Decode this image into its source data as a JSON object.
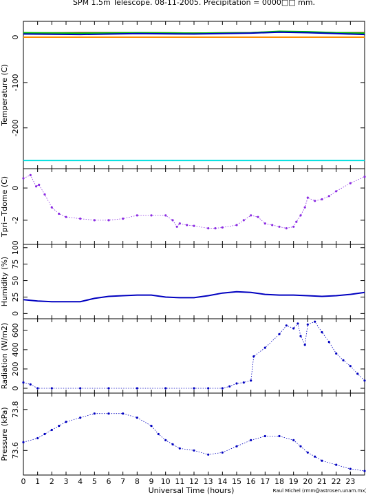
{
  "title": "SPM 1.5m Telescope. 08-11-2005. Precipitation = 0000□□ mm.",
  "xlabel": "Universal Time (hours)",
  "credit": "Raul Michel (rmm@astrosen.unam.mx)",
  "colors": {
    "red": "#c00000",
    "green": "#00c000",
    "orange": "#ff8c00",
    "cyan": "#00e0e0",
    "blue": "#0000c0",
    "purple": "#8a2be2"
  },
  "chart_data": [
    {
      "type": "line",
      "name": "temperature",
      "ylabel": "Temperature (C)",
      "xlim": [
        0,
        24
      ],
      "ylim": [
        -290,
        35
      ],
      "yticks": [
        0,
        -100,
        -200
      ],
      "series": [
        {
          "color": "#c00000",
          "x": [
            0,
            4,
            8,
            12,
            16,
            18,
            20,
            22,
            24
          ],
          "y": [
            9,
            10,
            10,
            9,
            10,
            12,
            11,
            10,
            10
          ]
        },
        {
          "color": "#00c000",
          "x": [
            0,
            4,
            8,
            12,
            16,
            18,
            20,
            22,
            24
          ],
          "y": [
            10,
            9,
            10,
            9,
            10,
            13,
            12,
            10,
            9
          ]
        },
        {
          "color": "#0000c0",
          "x": [
            0,
            4,
            8,
            12,
            16,
            18,
            20,
            22,
            24
          ],
          "y": [
            7,
            6,
            8,
            7,
            9,
            11,
            10,
            8,
            6
          ]
        },
        {
          "color": "#ff8c00",
          "x": [
            0,
            24
          ],
          "y": [
            0,
            0
          ]
        },
        {
          "color": "#00e0e0",
          "x": [
            0,
            24
          ],
          "y": [
            -272,
            -272
          ]
        }
      ]
    },
    {
      "type": "scatter",
      "name": "tpri-tdome",
      "ylabel": "Tpri−Tdome (C)",
      "xlim": [
        0,
        24
      ],
      "ylim": [
        -3.5,
        1.2
      ],
      "yticks": [
        0,
        -2
      ],
      "series": [
        {
          "color": "#8a2be2",
          "x": [
            0,
            0.5,
            0.9,
            1.1,
            1.5,
            2,
            2.5,
            3,
            4,
            5,
            6,
            7,
            8,
            9,
            10,
            10.5,
            10.8,
            11,
            11.5,
            12,
            13,
            13.5,
            14,
            15,
            15.5,
            16,
            16.5,
            17,
            17.5,
            18,
            18.5,
            19,
            19.2,
            19.5,
            19.8,
            20,
            20.5,
            21,
            21.5,
            22,
            23,
            24
          ],
          "y": [
            0.6,
            0.8,
            0.1,
            0.2,
            -0.4,
            -1.2,
            -1.6,
            -1.8,
            -1.9,
            -2.0,
            -2.0,
            -1.9,
            -1.7,
            -1.7,
            -1.7,
            -2.0,
            -2.4,
            -2.2,
            -2.3,
            -2.35,
            -2.5,
            -2.5,
            -2.45,
            -2.3,
            -2.0,
            -1.7,
            -1.8,
            -2.2,
            -2.3,
            -2.4,
            -2.5,
            -2.4,
            -2.1,
            -1.7,
            -1.2,
            -0.6,
            -0.8,
            -0.7,
            -0.5,
            -0.2,
            0.3,
            0.7
          ]
        }
      ]
    },
    {
      "type": "line",
      "name": "humidity",
      "ylabel": "Humidity (%)",
      "xlim": [
        0,
        24
      ],
      "ylim": [
        -8,
        105
      ],
      "yticks": [
        0,
        25,
        50,
        75,
        100
      ],
      "series": [
        {
          "color": "#0000c0",
          "x": [
            0,
            1,
            2,
            3,
            4,
            5,
            6,
            7,
            8,
            9,
            10,
            11,
            12,
            13,
            14,
            15,
            16,
            17,
            18,
            19,
            20,
            21,
            22,
            23,
            24
          ],
          "y": [
            21,
            19,
            18,
            18,
            18,
            23,
            26,
            27,
            28,
            28,
            25,
            24,
            24,
            27,
            31,
            33,
            32,
            29,
            28,
            28,
            27,
            26,
            27,
            29,
            32
          ]
        }
      ]
    },
    {
      "type": "scatter",
      "name": "radiation",
      "ylabel": "Radiation (W/m2)",
      "xlim": [
        0,
        24
      ],
      "ylim": [
        -50,
        720
      ],
      "yticks": [
        0,
        200,
        400,
        600
      ],
      "series": [
        {
          "color": "#0000c0",
          "x": [
            0,
            0.5,
            1,
            2,
            4,
            6,
            8,
            10,
            12,
            13,
            14,
            14.5,
            15,
            15.5,
            16,
            16.2,
            17,
            18,
            18.5,
            19,
            19.3,
            19.5,
            19.8,
            20,
            20.5,
            21,
            21.5,
            22,
            22.5,
            23,
            23.5,
            24
          ],
          "y": [
            60,
            40,
            0,
            0,
            0,
            0,
            0,
            0,
            0,
            0,
            0,
            20,
            50,
            60,
            80,
            330,
            420,
            560,
            650,
            620,
            670,
            540,
            450,
            660,
            690,
            580,
            480,
            360,
            290,
            230,
            150,
            80
          ]
        }
      ]
    },
    {
      "type": "scatter",
      "name": "pressure",
      "ylabel": "Pressure (kPa)",
      "xlim": [
        0,
        24
      ],
      "ylim": [
        73.48,
        73.88
      ],
      "yticks": [
        73.6,
        73.8
      ],
      "xticks": [
        0,
        1,
        2,
        3,
        4,
        5,
        6,
        7,
        8,
        9,
        10,
        11,
        12,
        13,
        14,
        15,
        16,
        17,
        18,
        19,
        20,
        21,
        22,
        23
      ],
      "series": [
        {
          "color": "#0000c0",
          "x": [
            0,
            1,
            1.5,
            2,
            2.5,
            3,
            4,
            5,
            6,
            7,
            8,
            9,
            9.5,
            10,
            10.5,
            11,
            12,
            13,
            14,
            15,
            16,
            17,
            18,
            19,
            19.5,
            20,
            20.5,
            21,
            22,
            23,
            24
          ],
          "y": [
            73.64,
            73.66,
            73.68,
            73.7,
            73.72,
            73.74,
            73.76,
            73.78,
            73.78,
            73.78,
            73.76,
            73.72,
            73.68,
            73.65,
            73.63,
            73.61,
            73.6,
            73.58,
            73.59,
            73.62,
            73.65,
            73.67,
            73.67,
            73.65,
            73.62,
            73.59,
            73.57,
            73.55,
            73.53,
            73.51,
            73.5
          ]
        }
      ]
    }
  ]
}
